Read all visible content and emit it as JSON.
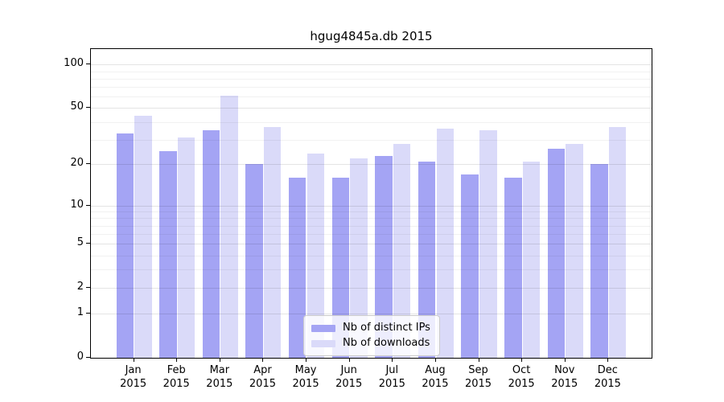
{
  "chart_data": {
    "type": "bar",
    "title": "hgug4845a.db 2015",
    "categories": [
      "Jan\n2015",
      "Feb\n2015",
      "Mar\n2015",
      "Apr\n2015",
      "May\n2015",
      "Jun\n2015",
      "Jul\n2015",
      "Aug\n2015",
      "Sep\n2015",
      "Oct\n2015",
      "Nov\n2015",
      "Dec\n2015"
    ],
    "series": [
      {
        "name": "Nb of distinct IPs",
        "color": "#a4a4f4",
        "values": [
          33,
          25,
          35,
          20,
          16,
          16,
          23,
          21,
          17,
          16,
          26,
          20
        ]
      },
      {
        "name": "Nb of downloads",
        "color": "#dadaf9",
        "values": [
          44,
          31,
          61,
          37,
          24,
          22,
          28,
          36,
          35,
          21,
          28,
          37
        ]
      }
    ],
    "yscale": "log10(value+1)",
    "yticks": [
      0,
      1,
      2,
      5,
      10,
      20,
      50,
      100
    ],
    "yticks_minor": [
      3,
      4,
      6,
      7,
      8,
      9,
      30,
      40,
      60,
      70,
      80,
      90
    ],
    "ylim": [
      0,
      128
    ],
    "xlabel": "",
    "ylabel": "",
    "grid": true,
    "legend_position": "lower center"
  }
}
